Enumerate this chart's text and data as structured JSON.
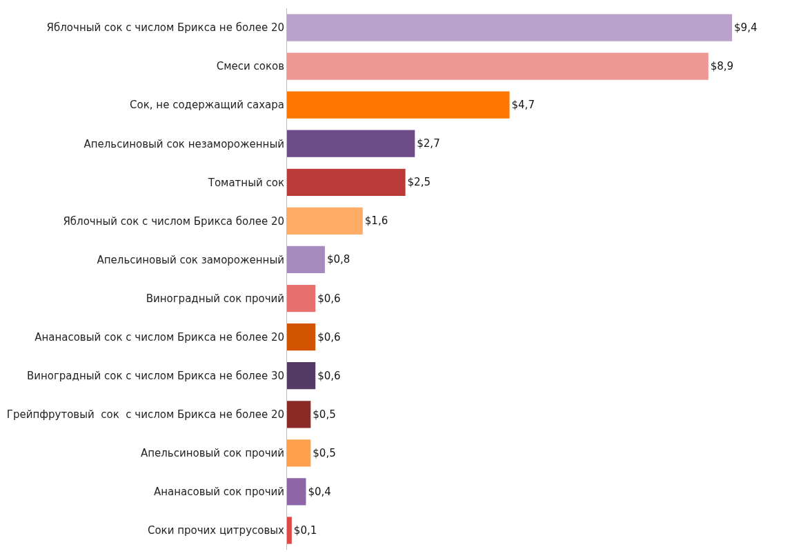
{
  "chart_data": {
    "type": "bar",
    "orientation": "horizontal",
    "categories": [
      "Яблочный сок с числом Брикса не более 20",
      "Смеси соков",
      "Сок, не содержащий сахара",
      "Апельсиновый сок незамороженный",
      "Томатный сок",
      "Яблочный сок с числом Брикса более 20",
      "Апельсиновый сок замороженный",
      "Виноградный сок прочий",
      "Ананасовый сок с числом Брикса не более 20",
      "Виноградный сок с числом Брикса не более 30",
      "Грейпфрутовый  сок  с числом Брикса не более 20",
      "Апельсиновый сок прочий",
      "Ананасовый сок прочий",
      "Соки прочих цитрусовых"
    ],
    "values": [
      9.4,
      8.9,
      4.7,
      2.7,
      2.5,
      1.6,
      0.8,
      0.6,
      0.6,
      0.6,
      0.5,
      0.5,
      0.4,
      0.1
    ],
    "value_labels": [
      "$9,4",
      "$8,9",
      "$4,7",
      "$2,7",
      "$2,5",
      "$1,6",
      "$0,8",
      "$0,6",
      "$0,6",
      "$0,6",
      "$0,5",
      "$0,5",
      "$0,4",
      "$0,1"
    ],
    "colors": [
      "#b9a2c9",
      "#ee9795",
      "#ff7700",
      "#6e4c87",
      "#b93a36",
      "#ffad66",
      "#a689bd",
      "#e8706f",
      "#d35400",
      "#553a66",
      "#8c2a28",
      "#ffa04d",
      "#8e66a8",
      "#e04848"
    ],
    "grid": false,
    "legend": false
  }
}
